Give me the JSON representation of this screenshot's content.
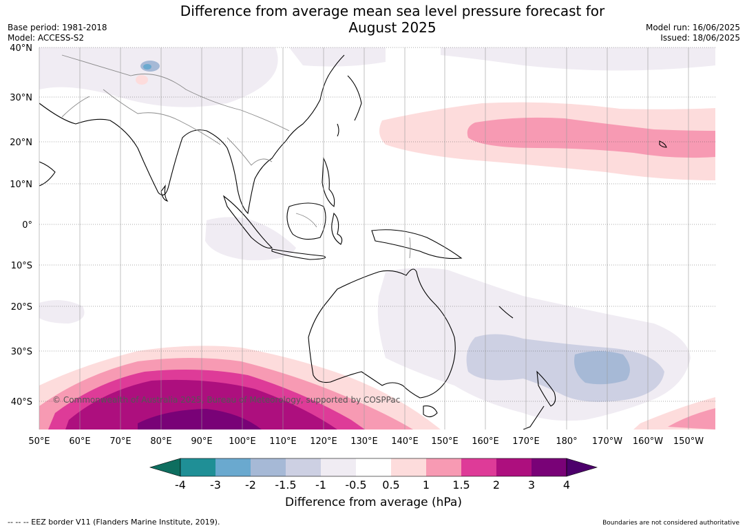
{
  "header": {
    "title": "Difference from average mean sea level pressure forecast for\nAugust 2025",
    "base_period": "Base period: 1981-2018",
    "model": "Model: ACCESS-S2",
    "model_run": "Model run: 16/06/2025",
    "issued": "Issued: 18/06/2025"
  },
  "map": {
    "lat_labels": [
      "40°N",
      "30°N",
      "20°N",
      "10°N",
      "0°",
      "10°S",
      "20°S",
      "30°S",
      "40°S"
    ],
    "lon_labels": [
      "50°E",
      "60°E",
      "70°E",
      "80°E",
      "90°E",
      "100°E",
      "110°E",
      "120°E",
      "130°E",
      "140°E",
      "150°E",
      "160°E",
      "170°E",
      "180°",
      "170°W",
      "160°W",
      "150°W"
    ],
    "copyright": "© Commonwealth of Australia 2025, Bureau of Meteorology, supported by COSPPac"
  },
  "colorbar": {
    "title": "Difference from average (hPa)",
    "ticks": [
      "-4",
      "-3",
      "-2",
      "-1.5",
      "-1",
      "-0.5",
      "0.5",
      "1",
      "1.5",
      "2",
      "3",
      "4"
    ],
    "colors": [
      "#0e6e5f",
      "#1f8f96",
      "#6aa9cf",
      "#a6b9d6",
      "#cdd0e3",
      "#f0ecf3",
      "#ffffff",
      "#fddcdc",
      "#f79ab3",
      "#de3b98",
      "#ad0f7e",
      "#790277",
      "#4c006b"
    ]
  },
  "footer": {
    "eez": "--  --  -- EEZ border V11 (Flanders Marine Institute, 2019).",
    "boundaries": "Boundaries are not considered authoritative"
  }
}
